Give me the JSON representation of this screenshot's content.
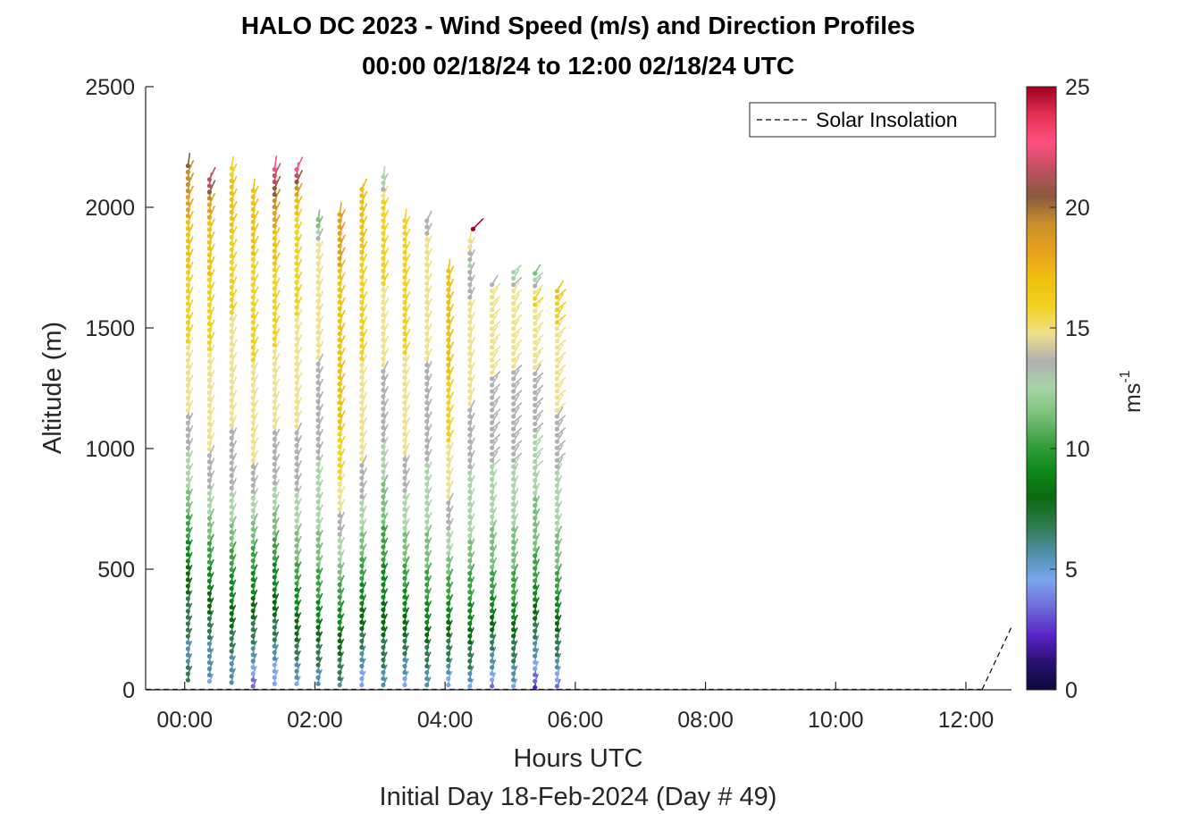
{
  "chart_data": {
    "type": "quiver",
    "title_line1": "HALO DC 2023 - Wind Speed (m/s) and Direction Profiles",
    "title_line2": "00:00 02/18/24 to 12:00 02/18/24  UTC",
    "xlabel": "Hours UTC",
    "xlabel2": "Initial Day 18-Feb-2024 (Day # 49)",
    "ylabel": "Altitude (m)",
    "xlim_hours": [
      -0.6,
      12.7
    ],
    "ylim": [
      0,
      2500
    ],
    "x_ticks": [
      {
        "hour": 0,
        "label": "00:00"
      },
      {
        "hour": 2,
        "label": "02:00"
      },
      {
        "hour": 4,
        "label": "04:00"
      },
      {
        "hour": 6,
        "label": "06:00"
      },
      {
        "hour": 8,
        "label": "08:00"
      },
      {
        "hour": 10,
        "label": "10:00"
      },
      {
        "hour": 12,
        "label": "12:00"
      }
    ],
    "y_ticks": [
      0,
      500,
      1000,
      1500,
      2000,
      2500
    ],
    "legend": {
      "entries": [
        "Solar Insolation"
      ],
      "location": "top-right"
    },
    "colorbar": {
      "label": "ms",
      "label_exponent": "-1",
      "range": [
        0,
        25
      ],
      "ticks": [
        0,
        5,
        10,
        15,
        20,
        25
      ],
      "colors": [
        "#0a0a3c",
        "#2a1070",
        "#5a24c8",
        "#6f6ad8",
        "#7aa6f0",
        "#4f8fa8",
        "#2f7a4f",
        "#0a6a10",
        "#0d8a1a",
        "#3aa040",
        "#79bf79",
        "#a8d4a8",
        "#b0b0b0",
        "#f0e08a",
        "#f2d020",
        "#f0c010",
        "#e6a020",
        "#c8902a",
        "#8a5a40",
        "#c05060",
        "#ff5080",
        "#e03050",
        "#a00020"
      ]
    },
    "solar_insolation": {
      "start_hour": 12.25,
      "end_hour": 12.7,
      "max_altitude": 260
    },
    "profiles": [
      {
        "hour": 0.05,
        "top": 2180,
        "bottom": 40,
        "speeds": [
          6.5,
          6,
          7,
          8,
          9.5,
          11,
          12.5,
          13.5,
          14.5,
          15,
          15.5,
          16,
          16.5,
          17,
          18.5,
          20
        ]
      },
      {
        "hour": 0.38,
        "top": 2140,
        "bottom": 35,
        "speeds": [
          5,
          6,
          7.5,
          9,
          10.5,
          12,
          13.5,
          14.5,
          15,
          15,
          15.5,
          16,
          16.5,
          17,
          18,
          23
        ]
      },
      {
        "hour": 0.72,
        "top": 2180,
        "bottom": 30,
        "speeds": [
          5.5,
          6.5,
          8,
          9.5,
          11,
          12.5,
          13.5,
          14,
          14.5,
          15,
          15,
          15.5,
          16,
          16.5,
          17,
          16
        ]
      },
      {
        "hour": 1.05,
        "top": 2090,
        "bottom": 15,
        "speeds": [
          3,
          6,
          7.5,
          9,
          10.5,
          12,
          13.5,
          14.5,
          15,
          15,
          15.5,
          16,
          16,
          16.5,
          17,
          17
        ]
      },
      {
        "hour": 1.38,
        "top": 2180,
        "bottom": 25,
        "speeds": [
          4,
          6,
          7.5,
          9,
          10.5,
          12,
          13.5,
          14,
          14.5,
          15,
          15.5,
          16,
          16.5,
          17,
          20,
          23
        ]
      },
      {
        "hour": 1.72,
        "top": 2170,
        "bottom": 25,
        "speeds": [
          5,
          7,
          8.5,
          10,
          11.5,
          12.5,
          13.5,
          14,
          14.5,
          15,
          15,
          15.5,
          15.5,
          16,
          17,
          23
        ]
      },
      {
        "hour": 2.05,
        "top": 1950,
        "bottom": 25,
        "speeds": [
          5.5,
          7,
          8.5,
          10,
          11,
          12,
          12.5,
          13,
          13.5,
          14,
          14,
          14.5,
          14.5,
          15,
          15,
          11
        ]
      },
      {
        "hour": 2.38,
        "top": 1990,
        "bottom": 20,
        "speeds": [
          6,
          7.5,
          9,
          10.5,
          12,
          13.5,
          15,
          16,
          16.5,
          17,
          17,
          17,
          17.5,
          17.5,
          18,
          18.5
        ]
      },
      {
        "hour": 2.72,
        "top": 2080,
        "bottom": 20,
        "speeds": [
          4,
          6,
          8,
          9.5,
          11,
          12.5,
          13.5,
          14.5,
          15,
          15,
          15.5,
          16,
          16,
          16.5,
          17,
          17
        ]
      },
      {
        "hour": 3.05,
        "top": 2130,
        "bottom": 20,
        "speeds": [
          5.5,
          7,
          8,
          9,
          10,
          11,
          12,
          13,
          13.5,
          14,
          14.5,
          15,
          15.5,
          16,
          16.5,
          12
        ]
      },
      {
        "hour": 3.38,
        "top": 1950,
        "bottom": 20,
        "speeds": [
          4.5,
          6.5,
          8,
          9.5,
          11,
          12,
          13,
          14,
          14.5,
          15,
          15,
          15.5,
          15.5,
          16,
          16,
          16
        ]
      },
      {
        "hour": 3.72,
        "top": 1950,
        "bottom": 20,
        "speeds": [
          5.5,
          7,
          8.5,
          10,
          11,
          12,
          12.5,
          13,
          13.5,
          14,
          14,
          14.5,
          14.5,
          15,
          15,
          13
        ]
      },
      {
        "hour": 4.05,
        "top": 1740,
        "bottom": 20,
        "speeds": [
          4.5,
          6.5,
          8,
          9.5,
          11,
          12.5,
          13.5,
          14.5,
          15,
          15.5,
          16,
          16.5,
          16.5,
          17,
          17,
          17
        ]
      },
      {
        "hour": 4.38,
        "top": 1880,
        "bottom": 15,
        "speeds": [
          5,
          7,
          8.5,
          10,
          11,
          12,
          12.5,
          13,
          13.5,
          14,
          14.5,
          15,
          15,
          14,
          13,
          15
        ]
      },
      {
        "hour": 4.72,
        "top": 1700,
        "bottom": 15,
        "speeds": [
          3.5,
          6,
          7.5,
          9,
          10.5,
          11.5,
          12,
          12.5,
          13,
          13.5,
          14,
          14,
          14.5,
          14.5,
          15,
          14
        ]
      },
      {
        "hour": 5.05,
        "top": 1740,
        "bottom": 15,
        "speeds": [
          5,
          6.5,
          8,
          9.5,
          10.5,
          11.5,
          12,
          12.5,
          13,
          13.5,
          14,
          14,
          14.5,
          14.5,
          15,
          12
        ]
      },
      {
        "hour": 5.38,
        "top": 1740,
        "bottom": 10,
        "speeds": [
          2.5,
          5,
          7,
          8.5,
          10,
          11,
          11.5,
          12,
          12.5,
          13,
          13.5,
          14,
          14.5,
          15,
          15.5,
          11
        ]
      },
      {
        "hour": 5.72,
        "top": 1660,
        "bottom": 15,
        "speeds": [
          3.5,
          6,
          7.5,
          9,
          10.5,
          11.5,
          12,
          12.5,
          13,
          13.5,
          14,
          14.5,
          14.5,
          15,
          15.5,
          17
        ]
      }
    ],
    "isolated_barbs": [
      {
        "hour": 4.43,
        "altitude": 1910,
        "speed": 25
      }
    ]
  }
}
